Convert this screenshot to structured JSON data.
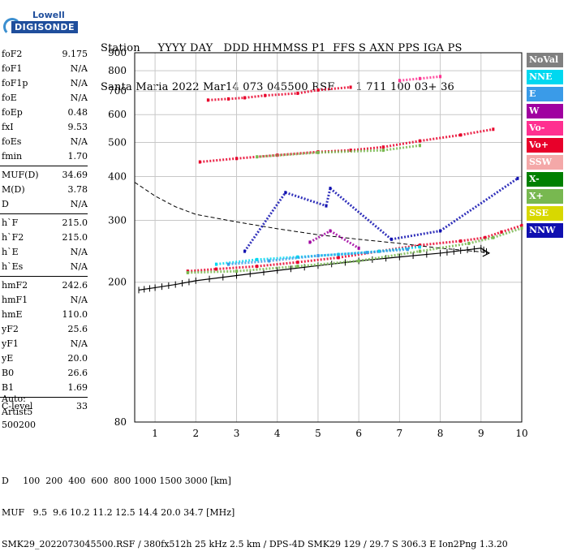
{
  "logo": {
    "brand": "Lowell",
    "name": "DIGISONDE"
  },
  "header": {
    "line1": "Station     YYYY DAY   DDD HHMMSS P1  FFS S AXN PPS IGA PS",
    "line2": "Santa Maria 2022 Mar14 073 045500 RSF      1 711 100 03+ 36"
  },
  "params": [
    {
      "label": "foF2",
      "value": "9.175"
    },
    {
      "label": "foF1",
      "value": "N/A"
    },
    {
      "label": "foF1p",
      "value": "N/A"
    },
    {
      "label": "foE",
      "value": "N/A"
    },
    {
      "label": "foEp",
      "value": "0.48"
    },
    {
      "label": "fxI",
      "value": "9.53"
    },
    {
      "label": "foEs",
      "value": "N/A"
    },
    {
      "label": "fmin",
      "value": "1.70"
    },
    {
      "label": "MUF(D)",
      "value": "34.69"
    },
    {
      "label": "M(D)",
      "value": "3.78"
    },
    {
      "label": "D",
      "value": "N/A"
    },
    {
      "label": "h`F",
      "value": "215.0"
    },
    {
      "label": "h`F2",
      "value": "215.0"
    },
    {
      "label": "h`E",
      "value": "N/A"
    },
    {
      "label": "h`Es",
      "value": "N/A"
    },
    {
      "label": "hmF2",
      "value": "242.6"
    },
    {
      "label": "hmF1",
      "value": "N/A"
    },
    {
      "label": "hmE",
      "value": "110.0"
    },
    {
      "label": "yF2",
      "value": "25.6"
    },
    {
      "label": "yF1",
      "value": "N/A"
    },
    {
      "label": "yE",
      "value": "20.0"
    },
    {
      "label": "B0",
      "value": "26.6"
    },
    {
      "label": "B1",
      "value": "1.69"
    },
    {
      "label": "C-level",
      "value": "33"
    }
  ],
  "auto": {
    "line1": "Auto:",
    "line2": "Artist5",
    "line3": "500200"
  },
  "legend": [
    {
      "label": "NoVal",
      "color": "#808080"
    },
    {
      "label": "NNE",
      "color": "#00d8f0"
    },
    {
      "label": "E",
      "color": "#3a9be8"
    },
    {
      "label": "W",
      "color": "#a000a0"
    },
    {
      "label": "Vo-",
      "color": "#ff3090"
    },
    {
      "label": "Vo+",
      "color": "#e8002a"
    },
    {
      "label": "SSW",
      "color": "#f4a8a8"
    },
    {
      "label": "X-",
      "color": "#008000"
    },
    {
      "label": "X+",
      "color": "#78b850"
    },
    {
      "label": "SSE",
      "color": "#d8d800"
    },
    {
      "label": "NNW",
      "color": "#1010b0"
    }
  ],
  "footer": {
    "line1": "D     100  200  400  600  800 1000 1500 3000 [km]",
    "line2": "MUF   9.5  9.6 10.2 11.2 12.5 14.4 20.0 34.7 [MHz]",
    "line3": "SMK29_2022073045500.RSF / 380fx512h 25 kHz 2.5 km / DPS-4D SMK29 129 / 29.7 S 306.3 E Ion2Png 1.3.20"
  },
  "chart_data": {
    "type": "scatter",
    "xlabel": "",
    "ylabel": "",
    "xlim": [
      0.5,
      10
    ],
    "ylim": [
      80,
      900
    ],
    "x_ticks": [
      1,
      2,
      3,
      4,
      5,
      6,
      7,
      8,
      9,
      10
    ],
    "y_ticks": [
      80,
      200,
      300,
      400,
      500,
      600,
      700,
      800,
      900
    ],
    "y_scale": "log",
    "grid": true,
    "series": [
      {
        "name": "Vo+ (1F2)",
        "color": "#e8002a",
        "x": [
          1.8,
          2.5,
          3.5,
          4.5,
          5.5,
          6.5,
          7.5,
          8.5,
          9.1,
          9.5,
          10.0
        ],
        "y": [
          215,
          218,
          222,
          228,
          235,
          245,
          255,
          262,
          268,
          278,
          290
        ]
      },
      {
        "name": "X+",
        "color": "#78b850",
        "x": [
          1.8,
          3.0,
          4.5,
          6.0,
          7.5,
          8.7,
          9.3,
          10.0
        ],
        "y": [
          213,
          215,
          222,
          230,
          245,
          258,
          268,
          285
        ]
      },
      {
        "name": "NNE",
        "color": "#00d8f0",
        "x": [
          2.5,
          3.5,
          4.5,
          5.5,
          6.5,
          7.5
        ],
        "y": [
          225,
          232,
          236,
          240,
          245,
          252
        ]
      },
      {
        "name": "E",
        "color": "#3a9be8",
        "x": [
          2.8,
          3.8,
          5.0,
          6.2,
          7.2
        ],
        "y": [
          225,
          230,
          238,
          243,
          248
        ]
      },
      {
        "name": "NNW",
        "color": "#1010b0",
        "x": [
          3.2,
          4.2,
          5.2,
          5.3,
          6.8,
          8.0,
          9.9
        ],
        "y": [
          245,
          360,
          330,
          370,
          265,
          280,
          395
        ]
      },
      {
        "name": "W",
        "color": "#a000a0",
        "x": [
          4.8,
          5.3,
          6.0
        ],
        "y": [
          260,
          280,
          250
        ]
      },
      {
        "name": "Vo+ (2F2)",
        "color": "#e8002a",
        "x": [
          2.1,
          3.0,
          4.0,
          5.0,
          5.8,
          6.6,
          7.5,
          8.5,
          9.3
        ],
        "y": [
          440,
          450,
          460,
          470,
          475,
          485,
          505,
          525,
          545
        ]
      },
      {
        "name": "X+ (2F2)",
        "color": "#78b850",
        "x": [
          3.5,
          5.0,
          6.6,
          7.5
        ],
        "y": [
          455,
          468,
          475,
          490
        ]
      },
      {
        "name": "Vo+ (3F2)",
        "color": "#e8002a",
        "x": [
          2.3,
          2.8,
          3.2,
          3.7,
          4.5,
          5.0,
          5.8
        ],
        "y": [
          660,
          665,
          670,
          680,
          690,
          705,
          718
        ]
      },
      {
        "name": "Vo- (4F2)",
        "color": "#ff3090",
        "x": [
          7.0,
          7.5,
          8.0
        ],
        "y": [
          750,
          760,
          770
        ]
      }
    ],
    "profile": {
      "name": "Electron density profile",
      "x": [
        0.6,
        1.0,
        1.5,
        2.0,
        3.0,
        4.0,
        5.0,
        6.0,
        7.0,
        8.0,
        8.5,
        9.0,
        9.2
      ],
      "y": [
        190,
        193,
        197,
        202,
        209,
        216,
        223,
        230,
        236,
        242,
        246,
        250,
        242
      ]
    },
    "mufd_curve": {
      "x": [
        0.5,
        1.0,
        1.5,
        2.0,
        3.0,
        4.0,
        5.0,
        6.0,
        7.0,
        8.0,
        9.0,
        9.2
      ],
      "y": [
        385,
        352,
        328,
        312,
        297,
        284,
        273,
        265,
        258,
        250,
        244,
        242
      ]
    }
  }
}
